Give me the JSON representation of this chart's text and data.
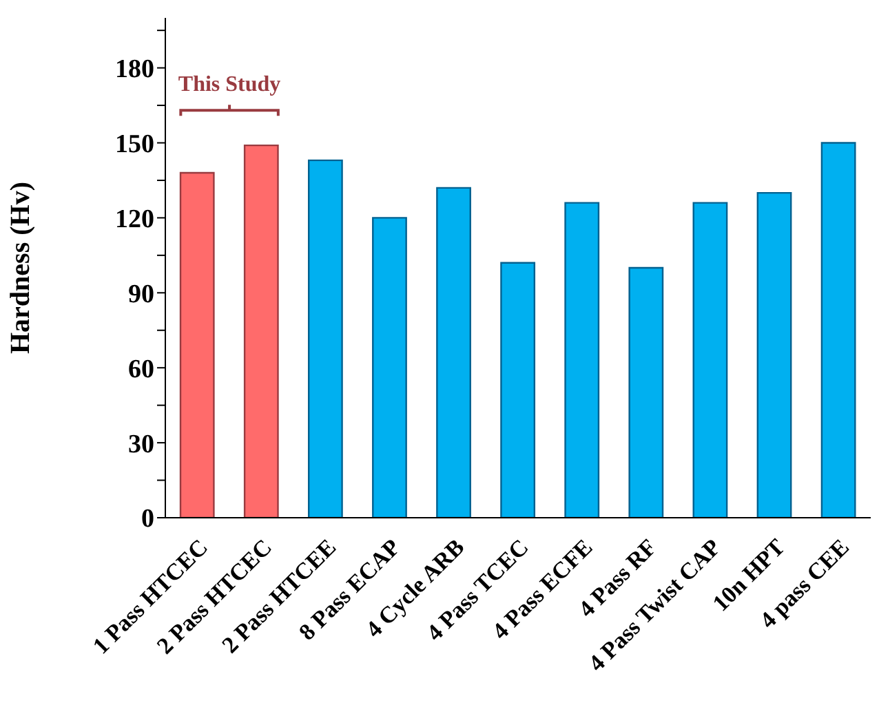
{
  "chart_data": {
    "type": "bar",
    "ylabel": "Hardness (Hv)",
    "categories": [
      "1 Pass HTCEC",
      "2 Pass HTCEC",
      "2 Pass HTCEE",
      "8 Pass ECAP",
      "4 Cycle ARB",
      "4 Pass TCEC",
      "4 Pass ECFE",
      "4 Pass RF",
      "4 Pass Twist CAP",
      "10n HPT",
      "4 pass CEE"
    ],
    "values": [
      138,
      149,
      143,
      120,
      132,
      102,
      126,
      100,
      126,
      130,
      150
    ],
    "colors": [
      "#ff6b6b",
      "#ff6b6b",
      "#00b0f0",
      "#00b0f0",
      "#00b0f0",
      "#00b0f0",
      "#00b0f0",
      "#00b0f0",
      "#00b0f0",
      "#00b0f0",
      "#00b0f0"
    ],
    "ylim": [
      0,
      200
    ],
    "yticks": [
      0,
      {
        "value": 15,
        "label": null
      },
      30,
      {
        "value": 45,
        "label": null
      },
      60,
      {
        "value": 75,
        "label": null
      },
      90,
      {
        "value": 105,
        "label": null
      },
      120,
      {
        "value": 135,
        "label": null
      },
      150,
      {
        "value": 165,
        "label": null
      },
      180,
      {
        "value": 195,
        "label": null
      }
    ],
    "grid": false,
    "annotations": [
      "This Study"
    ]
  }
}
